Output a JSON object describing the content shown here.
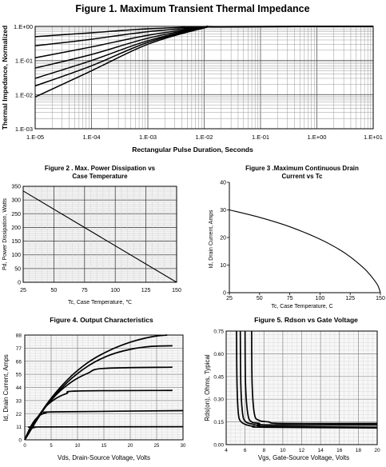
{
  "chart_data": [
    {
      "type": "line",
      "title": "Figure 1. Maximum Transient Thermal Impedance",
      "xlabel": "Rectangular Pulse Duration, Seconds",
      "ylabel": "Thermal Impedance, Normalized",
      "xscale": "log",
      "yscale": "log",
      "xlim": [
        1e-05,
        10
      ],
      "ylim": [
        0.001,
        1
      ],
      "grid": true,
      "x_ticks": [
        "1.E-05",
        "1.E-04",
        "1.E-03",
        "1.E-02",
        "1.E-01",
        "1.E+00",
        "1.E+01"
      ],
      "y_ticks": [
        "1.E+00",
        "1.E-01",
        "1.E-02",
        "1.E-03"
      ],
      "series": [
        {
          "x": [
            1e-05,
            0.0001,
            0.001,
            0.01,
            0.02,
            10
          ],
          "values": [
            0.0085,
            0.05,
            0.3,
            0.9,
            0.97,
            1.0
          ]
        },
        {
          "x": [
            1e-05,
            0.0001,
            0.001,
            0.01,
            0.02,
            10
          ],
          "values": [
            0.018,
            0.07,
            0.34,
            0.91,
            0.97,
            1.0
          ]
        },
        {
          "x": [
            1e-05,
            0.0001,
            0.001,
            0.01,
            0.02,
            10
          ],
          "values": [
            0.03,
            0.1,
            0.38,
            0.92,
            0.97,
            1.0
          ]
        },
        {
          "x": [
            1e-05,
            0.0001,
            0.001,
            0.01,
            0.02,
            10
          ],
          "values": [
            0.06,
            0.15,
            0.45,
            0.93,
            0.98,
            1.0
          ]
        },
        {
          "x": [
            1e-05,
            0.0001,
            0.001,
            0.01,
            0.02,
            10
          ],
          "values": [
            0.12,
            0.25,
            0.55,
            0.94,
            0.98,
            1.0
          ]
        },
        {
          "x": [
            1e-05,
            0.0001,
            0.001,
            0.01,
            0.02,
            10
          ],
          "values": [
            0.27,
            0.42,
            0.7,
            0.95,
            0.99,
            1.0
          ]
        },
        {
          "x": [
            1e-05,
            0.0001,
            0.001,
            0.01,
            0.02,
            10
          ],
          "values": [
            0.5,
            0.65,
            0.85,
            0.98,
            0.99,
            1.0
          ]
        }
      ]
    },
    {
      "type": "line",
      "title": "Figure 2 . Max. Power Dissipation vs",
      "subtitle": "Case Temperature",
      "xlabel": "Tc, Case Temperature, ℃",
      "ylabel": "Pd, Power Dissipation, Watts",
      "xlim": [
        25,
        150
      ],
      "ylim": [
        0,
        350
      ],
      "grid": true,
      "x_ticks": [
        "25",
        "50",
        "75",
        "100",
        "125",
        "150"
      ],
      "y_ticks": [
        "350",
        "300",
        "250",
        "200",
        "150",
        "100",
        "50",
        "0"
      ],
      "series": [
        {
          "x": [
            25,
            150
          ],
          "values": [
            333,
            0
          ]
        }
      ]
    },
    {
      "type": "line",
      "title": "Figure 3 .Maximum Continuous Drain",
      "subtitle": "Current  vs Tc",
      "xlabel": "Tc, Case Temperature, C",
      "ylabel": "Id, Drain Current, Amps",
      "xlim": [
        25,
        150
      ],
      "ylim": [
        0,
        40
      ],
      "grid": false,
      "x_ticks": [
        "25",
        "50",
        "75",
        "100",
        "125",
        "150"
      ],
      "y_ticks": [
        "40",
        "30",
        "20",
        "10",
        "0"
      ],
      "series": [
        {
          "x": [
            25,
            50,
            75,
            100,
            115,
            125,
            135,
            140,
            145,
            148,
            150
          ],
          "values": [
            30,
            27.3,
            23.9,
            19.4,
            15.9,
            13,
            9.4,
            7.2,
            4.5,
            2.5,
            0
          ]
        }
      ]
    },
    {
      "type": "line",
      "title": "Figure 4. Output Characteristics",
      "xlabel": "Vds, Drain-Source Voltage, Volts",
      "ylabel": "Id, Drain Current, Amps",
      "xlim": [
        0,
        30
      ],
      "ylim": [
        0,
        88
      ],
      "grid": true,
      "x_ticks": [
        "0",
        "5",
        "10",
        "15",
        "20",
        "25",
        "30"
      ],
      "y_ticks": [
        "88",
        "77",
        "66",
        "55",
        "44",
        "33",
        "22",
        "11",
        "0"
      ],
      "series": [
        {
          "x": [
            0,
            0.5,
            1,
            1.5,
            2,
            3,
            30
          ],
          "values": [
            0,
            5,
            8.5,
            10,
            10.5,
            10.8,
            11
          ]
        },
        {
          "x": [
            0,
            1,
            2,
            3,
            4,
            6,
            30
          ],
          "values": [
            0,
            10,
            17,
            21,
            22.5,
            23.5,
            24.5
          ]
        },
        {
          "x": [
            0,
            2,
            4,
            6,
            8,
            10,
            28
          ],
          "values": [
            0,
            16,
            28,
            35,
            39,
            41,
            41.5
          ]
        },
        {
          "x": [
            0,
            3,
            6,
            9,
            12,
            15,
            28
          ],
          "values": [
            0,
            22,
            38,
            49,
            56,
            60,
            61
          ]
        },
        {
          "x": [
            0,
            4,
            8,
            12,
            16,
            20,
            24,
            28
          ],
          "values": [
            0,
            28,
            48,
            62,
            71,
            76,
            78.5,
            79
          ]
        },
        {
          "x": [
            0,
            4,
            8,
            12,
            16,
            20,
            24,
            27
          ],
          "values": [
            0,
            29,
            50,
            65,
            75,
            82,
            86.5,
            88
          ]
        }
      ]
    },
    {
      "type": "line",
      "title": "Figure  5.  Rdson vs Gate Voltage",
      "xlabel": "Vgs, Gate-Source Voltage, Volts",
      "ylabel": "Rds(on), Ohms, Typical",
      "xlim": [
        4,
        20
      ],
      "ylim": [
        0,
        0.75
      ],
      "grid": true,
      "x_ticks": [
        "4",
        "6",
        "8",
        "10",
        "12",
        "14",
        "16",
        "18",
        "20"
      ],
      "y_ticks": [
        "0.75",
        "0.60",
        "0.45",
        "0.30",
        "0.15",
        "0.00"
      ],
      "series": [
        {
          "x": [
            5.1,
            5.15,
            5.3,
            5.6,
            6.2,
            7,
            8,
            20
          ],
          "values": [
            0.75,
            0.4,
            0.2,
            0.15,
            0.13,
            0.12,
            0.115,
            0.11
          ]
        },
        {
          "x": [
            5.5,
            5.55,
            5.75,
            6.1,
            6.8,
            7.5,
            8.5,
            20
          ],
          "values": [
            0.75,
            0.4,
            0.2,
            0.15,
            0.135,
            0.125,
            0.12,
            0.115
          ]
        },
        {
          "x": [
            6.0,
            6.05,
            6.3,
            6.7,
            7.5,
            8.5,
            20
          ],
          "values": [
            0.75,
            0.4,
            0.2,
            0.15,
            0.14,
            0.13,
            0.13
          ]
        },
        {
          "x": [
            6.7,
            6.75,
            7.0,
            7.5,
            8.5,
            10,
            20
          ],
          "values": [
            0.75,
            0.4,
            0.2,
            0.16,
            0.15,
            0.14,
            0.14
          ]
        }
      ]
    }
  ]
}
